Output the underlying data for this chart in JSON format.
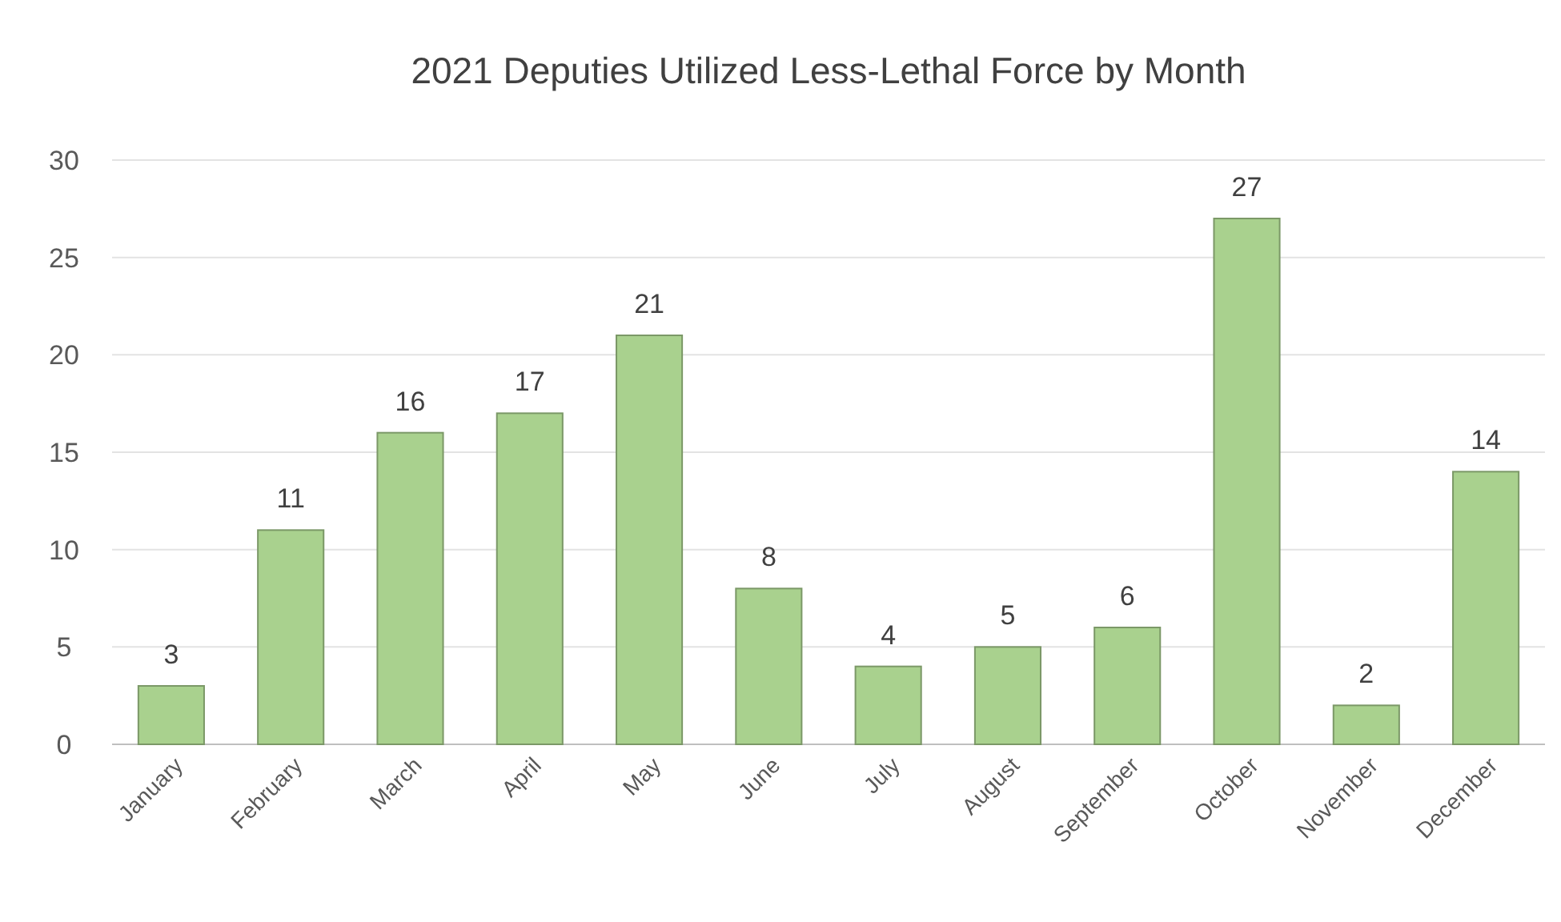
{
  "chart_data": {
    "type": "bar",
    "title": "2021 Deputies Utilized Less-Lethal Force by Month",
    "categories": [
      "January",
      "February",
      "March",
      "April",
      "May",
      "June",
      "July",
      "August",
      "September",
      "October",
      "November",
      "December"
    ],
    "values": [
      3,
      11,
      16,
      17,
      21,
      8,
      4,
      5,
      6,
      27,
      2,
      14
    ],
    "color": "#a9d18e",
    "ylim": [
      0,
      30
    ],
    "yticks": [
      0,
      5,
      10,
      15,
      20,
      25,
      30
    ],
    "grid": "y",
    "data_labels": true
  }
}
